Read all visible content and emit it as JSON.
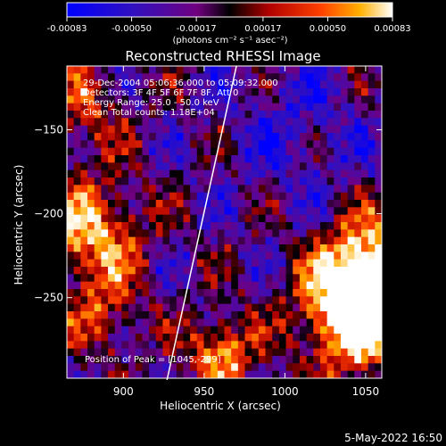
{
  "chart_data": {
    "type": "heatmap",
    "title": "Reconstructed RHESSI Image",
    "xlabel": "Heliocentric X (arcsec)",
    "ylabel": "Heliocentric Y (arcsec)",
    "xlim": [
      865,
      1060
    ],
    "ylim": [
      -298,
      -112
    ],
    "xticks": [
      900,
      950,
      1000,
      1050
    ],
    "yticks": [
      -150,
      -200,
      -250
    ],
    "colorbar": {
      "min": -0.00083,
      "max": 0.00083,
      "tick_values": [
        -0.00083,
        -0.0005,
        -0.00017,
        0.00017,
        0.0005,
        0.00083
      ],
      "tick_labels": [
        "-0.00083",
        "-0.00050",
        "-0.00017",
        "0.00017",
        "0.00050",
        "0.00083"
      ],
      "units": "(photons cm⁻² s⁻¹ asec⁻²)"
    },
    "annotations": [
      "29-Dec-2004 05:06:36.000 to 05:09:32.000",
      "Detectors: 3F 4F 5F 6F 7F 8F, Att 0",
      "Energy Range: 25.0 - 50.0 keV",
      "Clean     Total counts: 1.18E+04"
    ],
    "peak_label": "Position of Peak = [1045,-299]",
    "peak_position": [
      1045,
      -299
    ],
    "limb_line": [
      [
        927,
        -299
      ],
      [
        970,
        -112
      ]
    ],
    "grid": false
  },
  "footer": {
    "timestamp": "5-May-2022 16:50"
  }
}
